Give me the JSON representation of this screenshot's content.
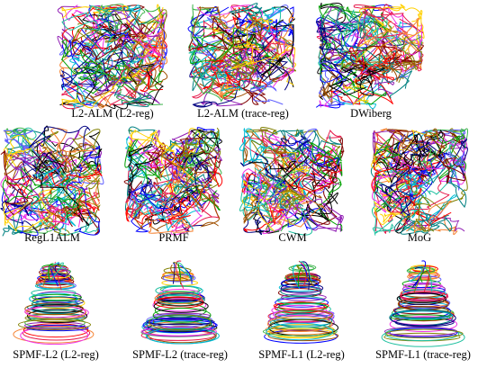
{
  "panels": [
    {
      "caption": "L2-ALM (L2-reg)"
    },
    {
      "caption": "L2-ALM (trace-reg)"
    },
    {
      "caption": "DWiberg"
    },
    {
      "caption": "RegL1ALM"
    },
    {
      "caption": "PRMF"
    },
    {
      "caption": "CWM"
    },
    {
      "caption": "MoG"
    },
    {
      "caption": "SPMF-L2 (L2-reg)"
    },
    {
      "caption": "SPMF-L2 (trace-reg)"
    },
    {
      "caption": "SPMF-L1 (L2-reg)"
    },
    {
      "caption": "SPMF-L1 (trace-reg)"
    }
  ]
}
